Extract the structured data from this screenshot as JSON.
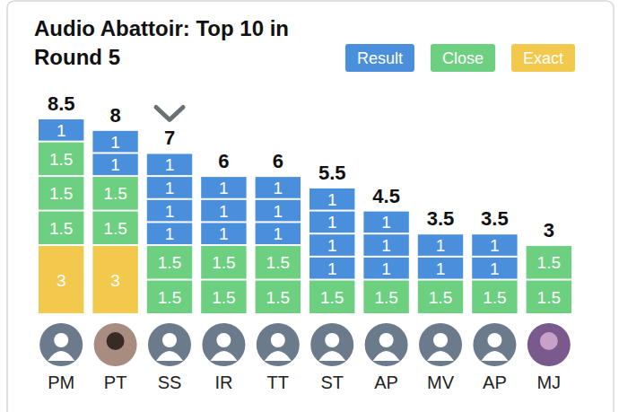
{
  "chart_data": {
    "type": "bar",
    "stacked": true,
    "data_labels": true,
    "tick_labels": false,
    "title": "Audio Abattoir: Top 10 in Round 5",
    "categories": [
      "PM",
      "PT",
      "SS",
      "IR",
      "TT",
      "ST",
      "AP",
      "MV",
      "AP",
      "MJ"
    ],
    "values": [
      8.5,
      8,
      7,
      6,
      6,
      5.5,
      4.5,
      3.5,
      3.5,
      3
    ],
    "ylim": [
      0,
      8.5
    ],
    "legend": "upper right",
    "selected": 2,
    "series": [
      {
        "name": "Result",
        "color": "#4a8fdc"
      },
      {
        "name": "Close",
        "color": "#6dcf80"
      },
      {
        "name": "Exact",
        "color": "#f2c94c"
      }
    ],
    "stacks": [
      [
        {
          "kind": "Exact",
          "value": 3
        },
        {
          "kind": "Close",
          "value": 1.5
        },
        {
          "kind": "Close",
          "value": 1.5
        },
        {
          "kind": "Close",
          "value": 1.5
        },
        {
          "kind": "Result",
          "value": 1
        }
      ],
      [
        {
          "kind": "Exact",
          "value": 3
        },
        {
          "kind": "Close",
          "value": 1.5
        },
        {
          "kind": "Close",
          "value": 1.5
        },
        {
          "kind": "Result",
          "value": 1
        },
        {
          "kind": "Result",
          "value": 1
        }
      ],
      [
        {
          "kind": "Close",
          "value": 1.5
        },
        {
          "kind": "Close",
          "value": 1.5
        },
        {
          "kind": "Result",
          "value": 1
        },
        {
          "kind": "Result",
          "value": 1
        },
        {
          "kind": "Result",
          "value": 1
        },
        {
          "kind": "Result",
          "value": 1
        }
      ],
      [
        {
          "kind": "Close",
          "value": 1.5
        },
        {
          "kind": "Close",
          "value": 1.5
        },
        {
          "kind": "Result",
          "value": 1
        },
        {
          "kind": "Result",
          "value": 1
        },
        {
          "kind": "Result",
          "value": 1
        }
      ],
      [
        {
          "kind": "Close",
          "value": 1.5
        },
        {
          "kind": "Close",
          "value": 1.5
        },
        {
          "kind": "Result",
          "value": 1
        },
        {
          "kind": "Result",
          "value": 1
        },
        {
          "kind": "Result",
          "value": 1
        }
      ],
      [
        {
          "kind": "Close",
          "value": 1.5
        },
        {
          "kind": "Result",
          "value": 1
        },
        {
          "kind": "Result",
          "value": 1
        },
        {
          "kind": "Result",
          "value": 1
        },
        {
          "kind": "Result",
          "value": 1
        }
      ],
      [
        {
          "kind": "Close",
          "value": 1.5
        },
        {
          "kind": "Result",
          "value": 1
        },
        {
          "kind": "Result",
          "value": 1
        },
        {
          "kind": "Result",
          "value": 1
        }
      ],
      [
        {
          "kind": "Close",
          "value": 1.5
        },
        {
          "kind": "Result",
          "value": 1
        },
        {
          "kind": "Result",
          "value": 1
        }
      ],
      [
        {
          "kind": "Close",
          "value": 1.5
        },
        {
          "kind": "Result",
          "value": 1
        },
        {
          "kind": "Result",
          "value": 1
        }
      ],
      [
        {
          "kind": "Close",
          "value": 1.5
        },
        {
          "kind": "Close",
          "value": 1.5
        }
      ]
    ]
  }
}
